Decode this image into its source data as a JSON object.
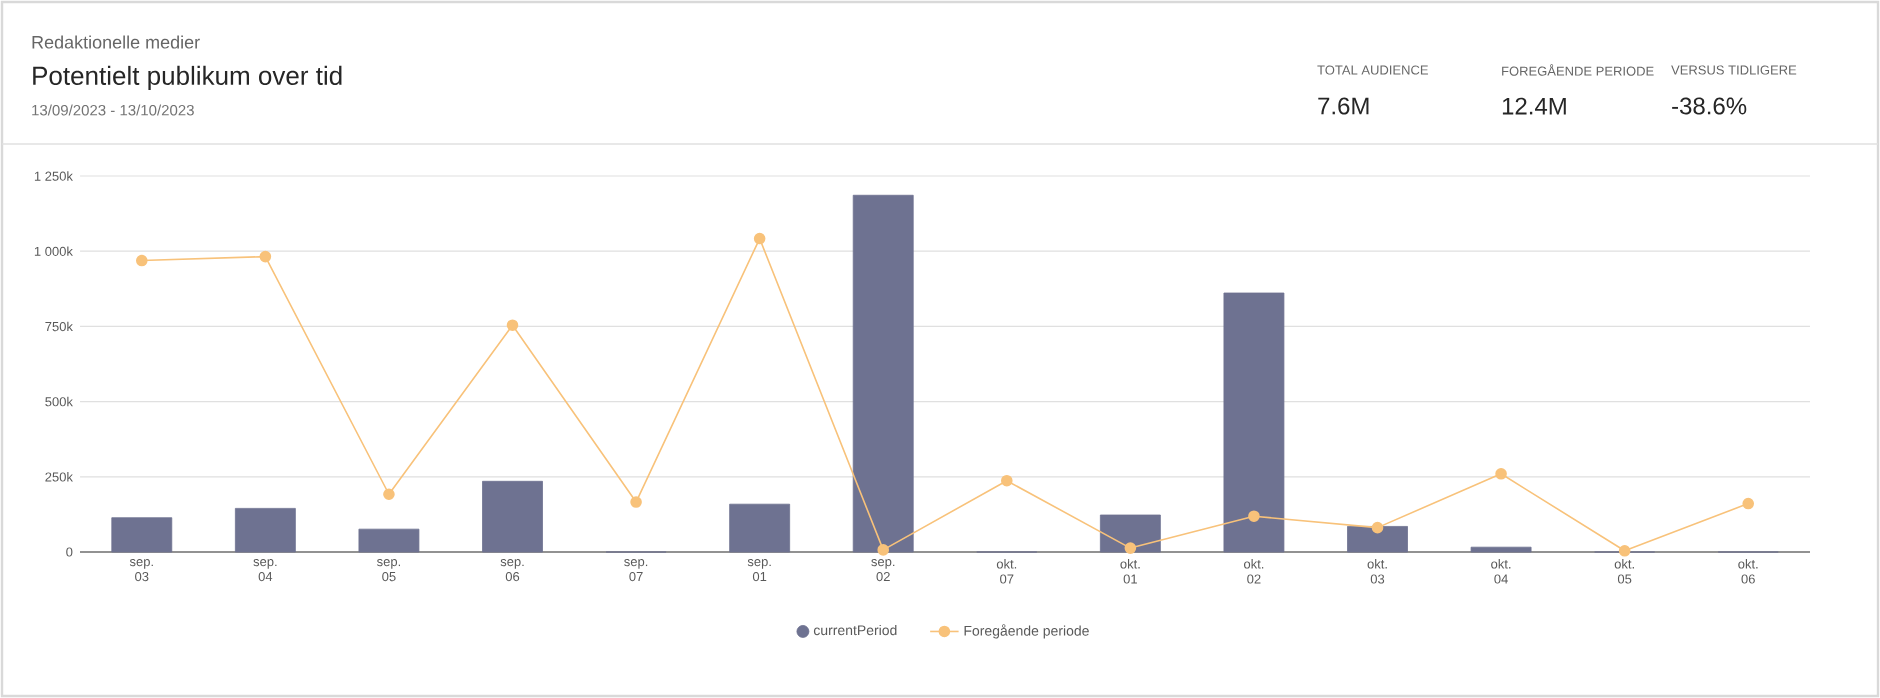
{
  "chart_data": {
    "type": "bar",
    "subtitle": "Redaktionelle medier",
    "title": "Potentielt publikum over tid",
    "annotations": [
      "13/09/2023 - 13/10/2023",
      "TOTAL AUDIENCE",
      "7.6M",
      "FOREGÅENDE PERIODE",
      "12.4M",
      "VERSUS TIDLIGERE",
      "-38.6%"
    ],
    "categories": [
      "sep. 03",
      "sep. 04",
      "sep. 05",
      "sep. 06",
      "sep. 07",
      "sep. 01",
      "sep. 02",
      "okt. 07",
      "okt. 01",
      "okt. 02",
      "okt. 03",
      "okt. 04",
      "okt. 05",
      "okt. 06"
    ],
    "series": [
      {
        "name": "currentPeriod",
        "color": "#6e7291",
        "values": [
          114000,
          145000,
          76000,
          235000,
          0,
          159000,
          1186000,
          0,
          123000,
          861000,
          85000,
          16000,
          0,
          0
        ]
      },
      {
        "name": "Foregående periode",
        "type": "line",
        "color": "#f8c27a",
        "marker": "circle",
        "values": [
          969000,
          982000,
          192000,
          754000,
          166000,
          1042000,
          7000,
          237000,
          13000,
          119000,
          81000,
          260000,
          4000,
          161000
        ]
      }
    ],
    "ylim": [
      0,
      1250000
    ],
    "yticks": [
      0,
      {
        "value": 250000,
        "label": "250k"
      },
      {
        "value": 500000,
        "label": "500k"
      },
      {
        "value": 750000,
        "label": "750k"
      },
      {
        "value": 1000000,
        "label": "1 000k"
      },
      {
        "value": 1250000,
        "label": "1 250k"
      }
    ],
    "grid": "y",
    "legend": "bottom"
  }
}
